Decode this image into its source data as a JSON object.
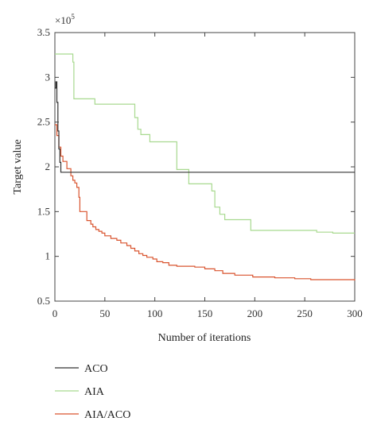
{
  "chart_data": {
    "type": "line",
    "xlabel": "Number of iterations",
    "ylabel": "Target value",
    "y_multiplier_label": "×10",
    "y_multiplier_exp": "5",
    "xlim": [
      0,
      300
    ],
    "ylim": [
      0.5,
      3.5
    ],
    "x_ticks": [
      "0",
      "50",
      "100",
      "150",
      "200",
      "250",
      "300"
    ],
    "y_ticks": [
      "0.5",
      "1",
      "1.5",
      "2",
      "2.5",
      "3",
      "3.5"
    ],
    "grid": false,
    "legend_position": "below-left",
    "series": [
      {
        "name": "ACO",
        "color": "#333333",
        "steps": [
          [
            0,
            2.88
          ],
          [
            1,
            2.95
          ],
          [
            2,
            2.72
          ],
          [
            3,
            2.4
          ],
          [
            4,
            2.2
          ],
          [
            5,
            2.05
          ],
          [
            6,
            1.94
          ],
          [
            300,
            1.94
          ]
        ]
      },
      {
        "name": "AIA",
        "color": "#a8d98f",
        "steps": [
          [
            0,
            3.26
          ],
          [
            18,
            3.17
          ],
          [
            19,
            2.76
          ],
          [
            40,
            2.7
          ],
          [
            80,
            2.55
          ],
          [
            83,
            2.42
          ],
          [
            86,
            2.36
          ],
          [
            95,
            2.28
          ],
          [
            122,
            1.97
          ],
          [
            134,
            1.81
          ],
          [
            157,
            1.73
          ],
          [
            160,
            1.55
          ],
          [
            165,
            1.47
          ],
          [
            170,
            1.41
          ],
          [
            196,
            1.29
          ],
          [
            262,
            1.27
          ],
          [
            278,
            1.26
          ],
          [
            300,
            1.26
          ]
        ]
      },
      {
        "name": "AIA/ACO",
        "color": "#d9542f",
        "steps": [
          [
            0,
            2.47
          ],
          [
            2,
            2.35
          ],
          [
            4,
            2.22
          ],
          [
            6,
            2.12
          ],
          [
            8,
            2.06
          ],
          [
            12,
            1.98
          ],
          [
            16,
            1.9
          ],
          [
            18,
            1.85
          ],
          [
            20,
            1.82
          ],
          [
            22,
            1.77
          ],
          [
            24,
            1.66
          ],
          [
            25,
            1.5
          ],
          [
            32,
            1.4
          ],
          [
            36,
            1.36
          ],
          [
            38,
            1.33
          ],
          [
            41,
            1.3
          ],
          [
            44,
            1.28
          ],
          [
            47,
            1.26
          ],
          [
            50,
            1.23
          ],
          [
            56,
            1.2
          ],
          [
            62,
            1.18
          ],
          [
            66,
            1.15
          ],
          [
            72,
            1.12
          ],
          [
            76,
            1.09
          ],
          [
            80,
            1.06
          ],
          [
            84,
            1.03
          ],
          [
            88,
            1.01
          ],
          [
            92,
            0.99
          ],
          [
            98,
            0.97
          ],
          [
            102,
            0.94
          ],
          [
            108,
            0.93
          ],
          [
            114,
            0.9
          ],
          [
            122,
            0.89
          ],
          [
            140,
            0.88
          ],
          [
            150,
            0.86
          ],
          [
            160,
            0.84
          ],
          [
            168,
            0.81
          ],
          [
            180,
            0.79
          ],
          [
            198,
            0.77
          ],
          [
            220,
            0.76
          ],
          [
            240,
            0.75
          ],
          [
            256,
            0.74
          ],
          [
            300,
            0.73
          ]
        ]
      }
    ]
  }
}
